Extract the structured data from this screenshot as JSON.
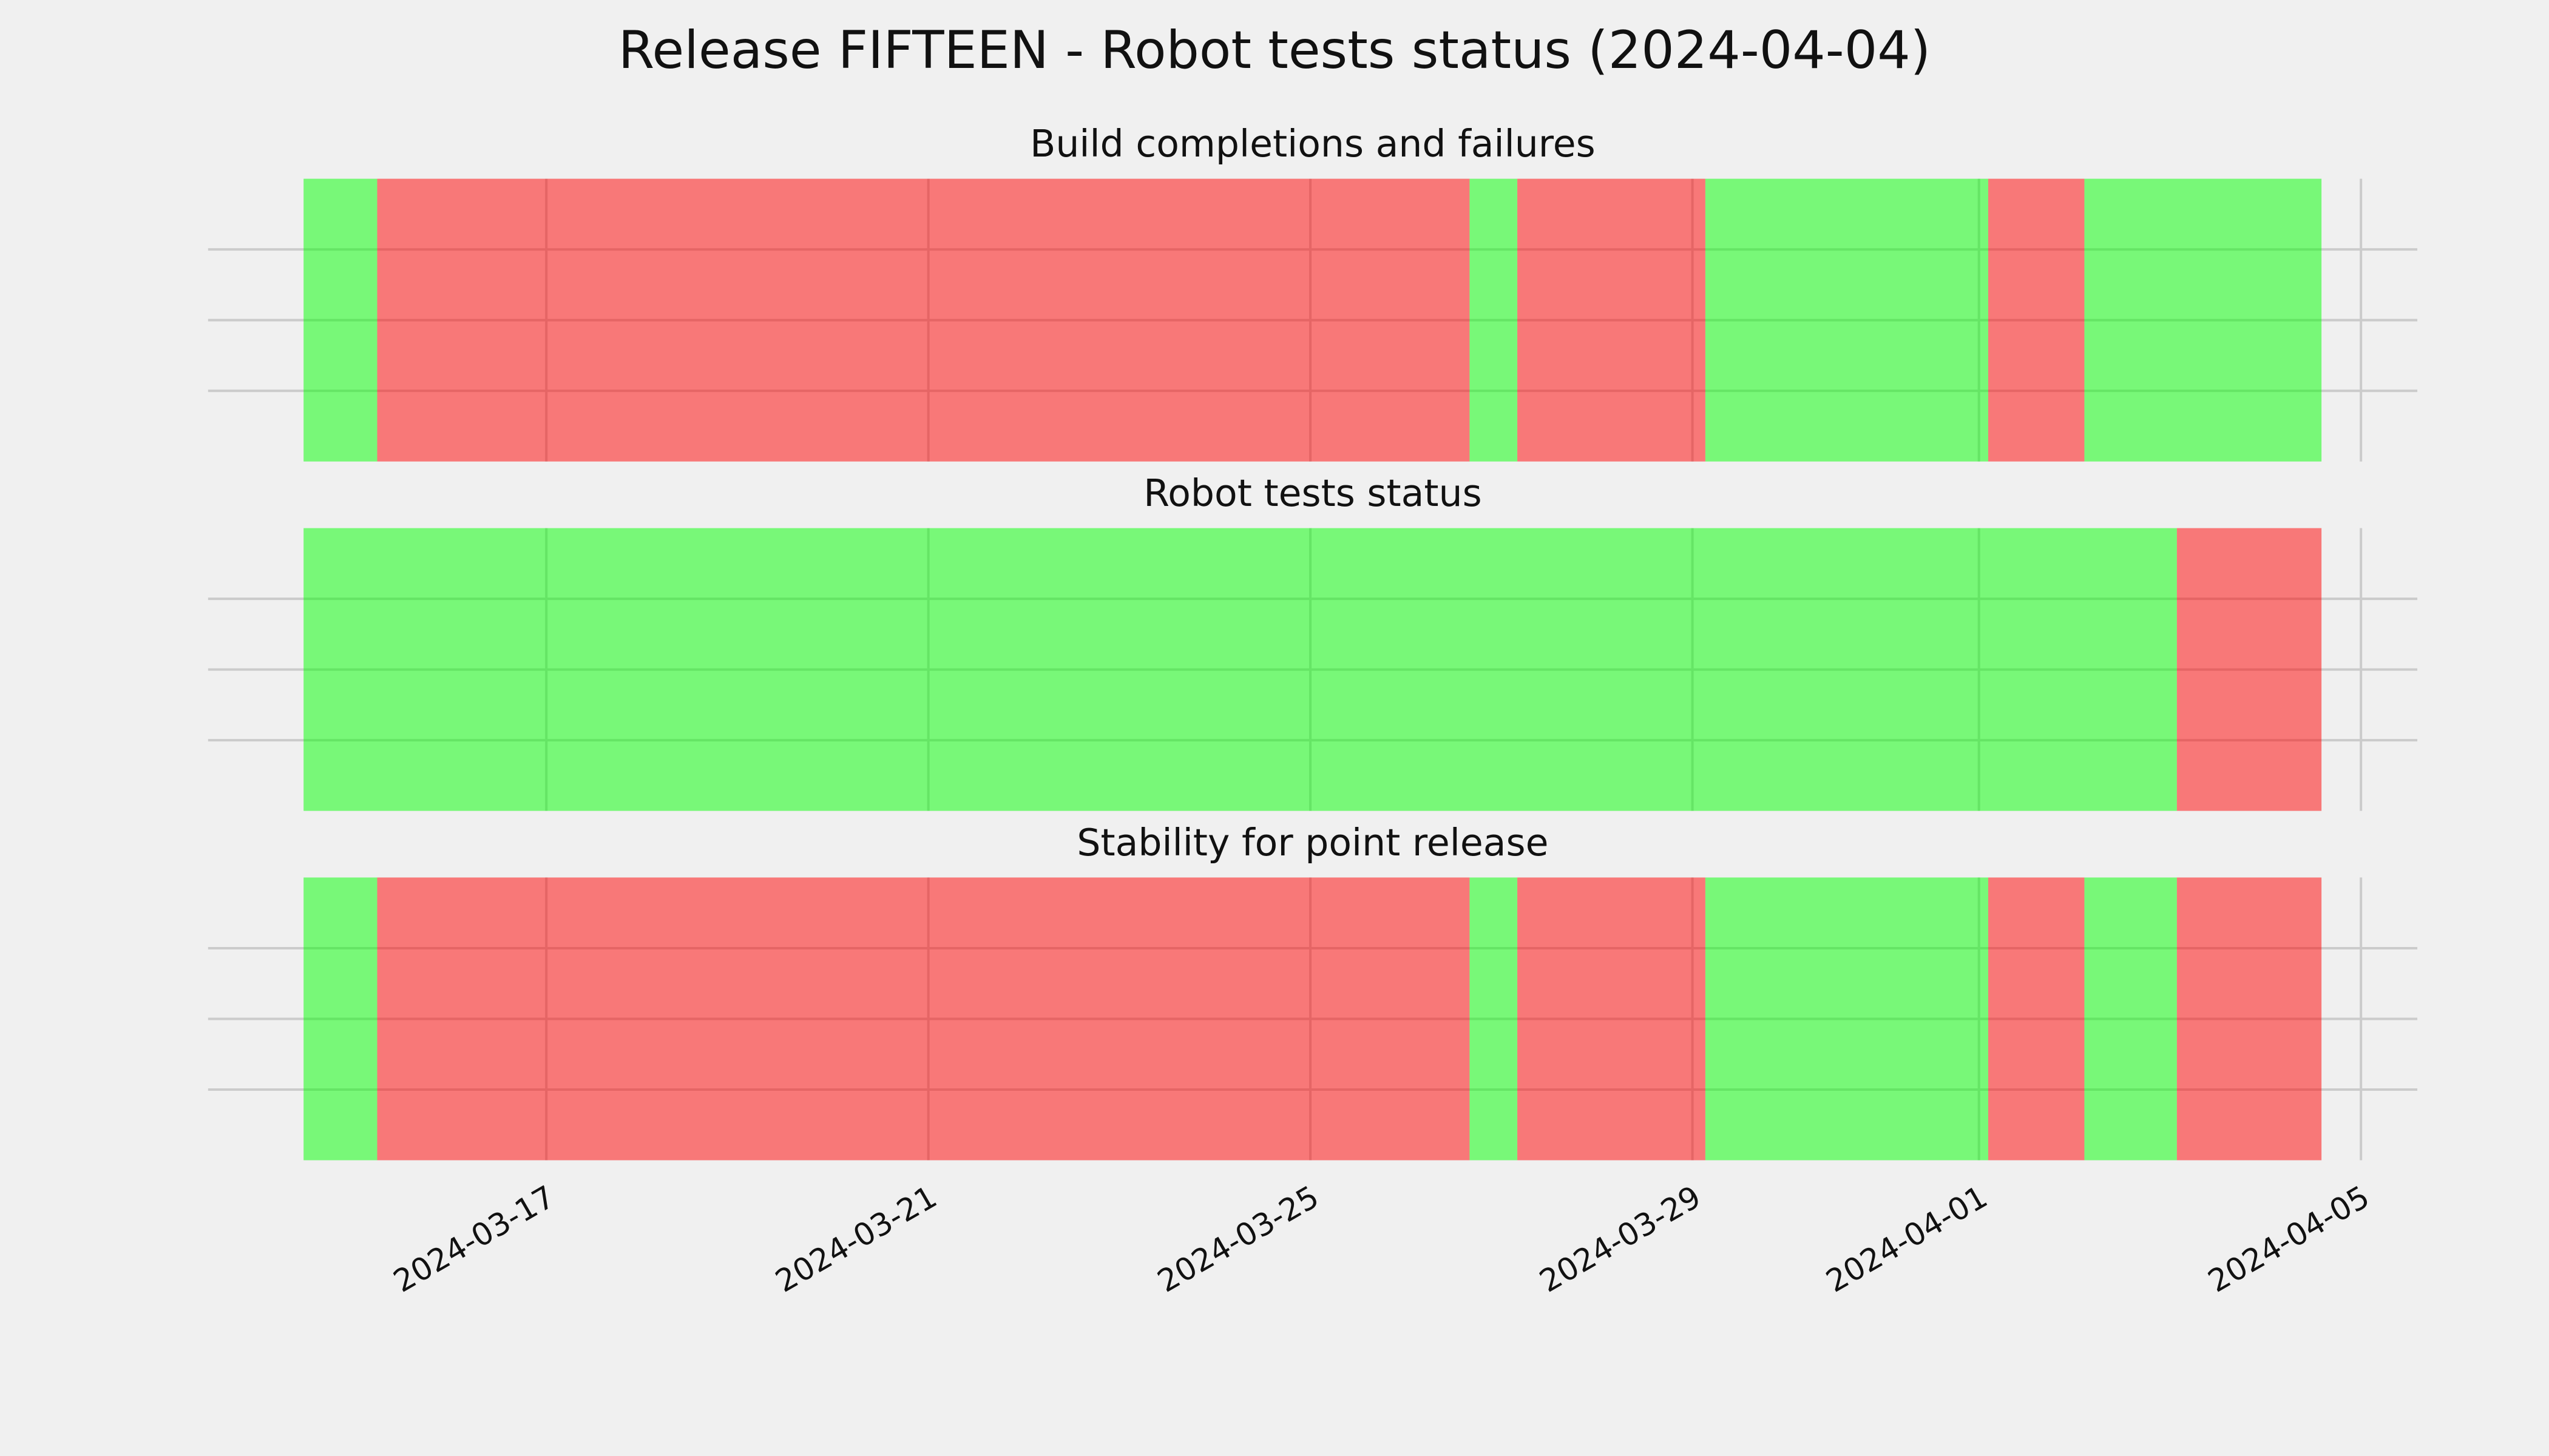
{
  "title": "Release FIFTEEN - Robot tests status (2024-04-04)",
  "chart_data": [
    {
      "type": "timeline",
      "title": "Build completions and failures",
      "xlim": [
        "2024-03-13T11:00",
        "2024-04-05T14:10"
      ],
      "xticks": [
        "2024-03-17",
        "2024-03-21",
        "2024-03-25",
        "2024-03-29",
        "2024-04-01",
        "2024-04-05"
      ],
      "ylim": [
        0,
        1
      ],
      "yticks": [
        0.25,
        0.5,
        0.75
      ],
      "grid": true,
      "segments": [
        {
          "start": "2024-03-14T11:00",
          "end": "2024-03-15T05:30",
          "color": "#00ff00"
        },
        {
          "start": "2024-03-15T05:30",
          "end": "2024-03-26T16:00",
          "color": "#ff0000"
        },
        {
          "start": "2024-03-26T16:00",
          "end": "2024-03-27T04:00",
          "color": "#00ff00"
        },
        {
          "start": "2024-03-27T04:00",
          "end": "2024-03-29T03:15",
          "color": "#ff0000"
        },
        {
          "start": "2024-03-29T03:15",
          "end": "2024-04-01T02:20",
          "color": "#00ff00"
        },
        {
          "start": "2024-04-01T02:20",
          "end": "2024-04-02T02:30",
          "color": "#ff0000"
        },
        {
          "start": "2024-04-02T02:30",
          "end": "2024-04-04T14:05",
          "color": "#00ff00"
        }
      ]
    },
    {
      "type": "timeline",
      "title": "Robot tests status",
      "xlim": [
        "2024-03-13T11:00",
        "2024-04-05T14:10"
      ],
      "xticks": [
        "2024-03-17",
        "2024-03-21",
        "2024-03-25",
        "2024-03-29",
        "2024-04-01",
        "2024-04-05"
      ],
      "ylim": [
        0,
        1
      ],
      "yticks": [
        0.25,
        0.5,
        0.75
      ],
      "grid": true,
      "segments": [
        {
          "start": "2024-03-14T11:00",
          "end": "2024-04-03T01:45",
          "color": "#00ff00"
        },
        {
          "start": "2024-04-03T01:45",
          "end": "2024-04-04T14:05",
          "color": "#ff0000"
        }
      ]
    },
    {
      "type": "timeline",
      "title": "Stability for point release",
      "xlim": [
        "2024-03-13T11:00",
        "2024-04-05T14:10"
      ],
      "xticks": [
        "2024-03-17",
        "2024-03-21",
        "2024-03-25",
        "2024-03-29",
        "2024-04-01",
        "2024-04-05"
      ],
      "ylim": [
        0,
        1
      ],
      "yticks": [
        0.25,
        0.5,
        0.75
      ],
      "grid": true,
      "show_xtick_labels": true,
      "segments": [
        {
          "start": "2024-03-14T11:00",
          "end": "2024-03-15T05:30",
          "color": "#00ff00"
        },
        {
          "start": "2024-03-15T05:30",
          "end": "2024-03-26T16:00",
          "color": "#ff0000"
        },
        {
          "start": "2024-03-26T16:00",
          "end": "2024-03-27T04:00",
          "color": "#00ff00"
        },
        {
          "start": "2024-03-27T04:00",
          "end": "2024-03-29T03:15",
          "color": "#ff0000"
        },
        {
          "start": "2024-03-29T03:15",
          "end": "2024-04-01T02:20",
          "color": "#00ff00"
        },
        {
          "start": "2024-04-01T02:20",
          "end": "2024-04-02T02:30",
          "color": "#ff0000"
        },
        {
          "start": "2024-04-02T02:30",
          "end": "2024-04-03T01:45",
          "color": "#00ff00"
        },
        {
          "start": "2024-04-03T01:45",
          "end": "2024-04-04T14:05",
          "color": "#ff0000"
        }
      ]
    }
  ]
}
